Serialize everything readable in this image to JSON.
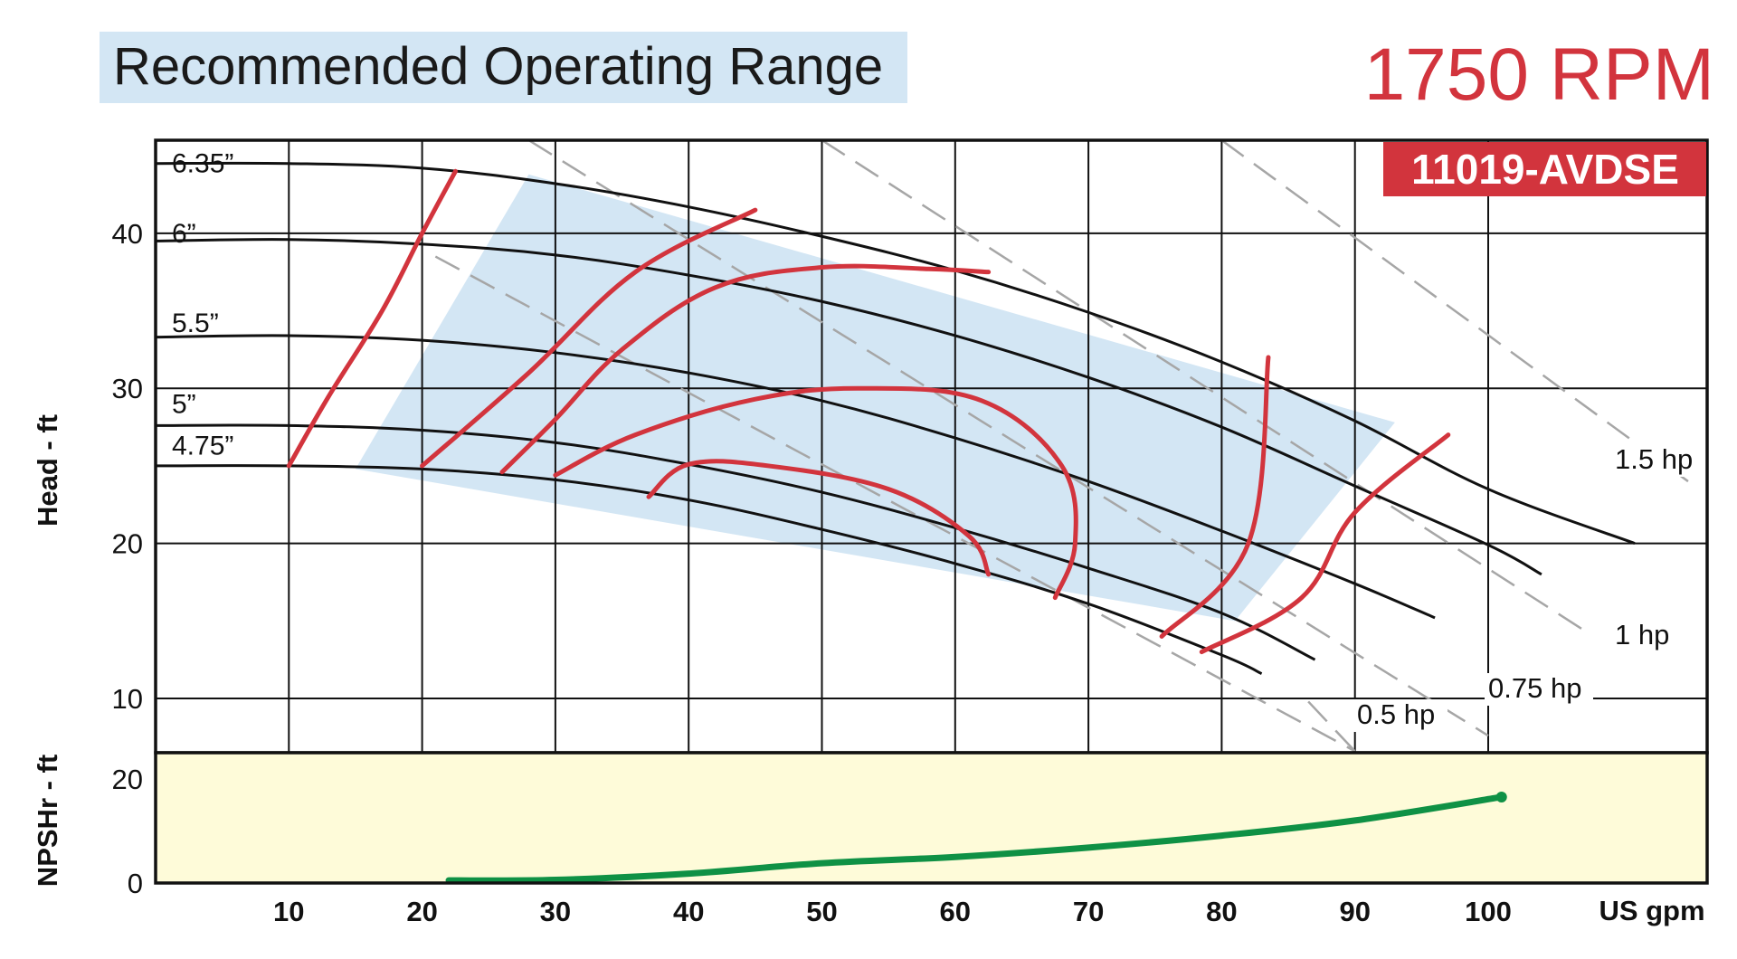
{
  "header": {
    "title": "Recommended Operating Range",
    "speed": "1750 RPM",
    "model": "11019-AVDSE"
  },
  "colors": {
    "title_background": "#d3e6f4",
    "operating_range": "#d3e6f4",
    "npsh_background": "#fefbd9",
    "accent_red": "#d2343d",
    "npsh_curve": "#0f9145",
    "power_lines": "#a6a6a6"
  },
  "chart_data": [
    {
      "type": "line",
      "name": "head",
      "xlabel": "US gpm",
      "ylabel": "Head - ft",
      "xlim": [
        0,
        110
      ],
      "ylim": [
        6.5,
        46
      ],
      "xticks": [
        "10",
        "20",
        "30",
        "40",
        "50",
        "60",
        "70",
        "80",
        "90",
        "100"
      ],
      "yticks": [
        "10",
        "20",
        "30",
        "40"
      ],
      "grid": true,
      "impeller_curves": [
        {
          "label": "6.35”",
          "x": [
            0,
            10,
            20,
            30,
            40,
            50,
            60,
            70,
            80,
            90,
            100,
            111
          ],
          "y": [
            44.5,
            44.5,
            44.2,
            43.2,
            41.7,
            39.8,
            37.6,
            34.9,
            31.7,
            27.9,
            23.5,
            20
          ]
        },
        {
          "label": "6”",
          "x": [
            0,
            10,
            20,
            30,
            40,
            50,
            60,
            70,
            80,
            90,
            100,
            104
          ],
          "y": [
            39.5,
            39.6,
            39.3,
            38.6,
            37.3,
            35.6,
            33.4,
            30.7,
            27.5,
            23.7,
            19.9,
            18
          ]
        },
        {
          "label": "5.5”",
          "x": [
            0,
            10,
            20,
            30,
            40,
            50,
            60,
            70,
            80,
            90,
            96
          ],
          "y": [
            33.3,
            33.4,
            33.1,
            32.3,
            31.0,
            29.2,
            26.8,
            24.0,
            20.8,
            17.4,
            15.2
          ]
        },
        {
          "label": "5”",
          "x": [
            0,
            10,
            20,
            30,
            40,
            50,
            60,
            70,
            80,
            87
          ],
          "y": [
            27.6,
            27.6,
            27.3,
            26.5,
            25.1,
            23.3,
            21.0,
            18.4,
            15.5,
            12.5
          ]
        },
        {
          "label": "4.75”",
          "x": [
            0,
            10,
            20,
            30,
            40,
            50,
            60,
            70,
            80,
            83
          ],
          "y": [
            25.0,
            25.0,
            24.8,
            24.1,
            22.8,
            20.9,
            18.7,
            16.1,
            12.8,
            11.6
          ]
        }
      ],
      "efficiency_curves": [
        {
          "x": [
            10,
            13,
            17,
            20,
            22.5
          ],
          "y": [
            25,
            29.5,
            35,
            40,
            44
          ]
        },
        {
          "x": [
            20,
            28,
            36,
            45
          ],
          "y": [
            25,
            31,
            37.5,
            41.5
          ]
        },
        {
          "x": [
            26,
            30,
            35,
            42,
            50,
            58,
            62.5
          ],
          "y": [
            24.6,
            28,
            32.5,
            36.5,
            37.8,
            37.7,
            37.5
          ]
        },
        {
          "x": [
            30,
            36,
            45,
            53,
            62,
            68,
            69,
            67.5
          ],
          "y": [
            24.4,
            27,
            29.3,
            30,
            29.2,
            25,
            20,
            16.5
          ]
        },
        {
          "x": [
            37,
            40,
            46,
            55,
            61,
            62.5
          ],
          "y": [
            23,
            25.1,
            25,
            23.5,
            20.5,
            18
          ]
        },
        {
          "x": [
            75.5,
            82,
            83.5
          ],
          "y": [
            14,
            20,
            32
          ]
        },
        {
          "x": [
            78.5,
            86,
            90,
            97
          ],
          "y": [
            13,
            16.5,
            22,
            27
          ]
        }
      ],
      "power_lines": [
        {
          "label": "0.5 hp",
          "x": [
            21,
            90
          ],
          "y": [
            38.5,
            6.6
          ]
        },
        {
          "label": "0.75 hp",
          "x": [
            28,
            100
          ],
          "y": [
            46,
            7.6
          ]
        },
        {
          "label": "1 hp",
          "x": [
            50,
            107
          ],
          "y": [
            46,
            14.5
          ]
        },
        {
          "label": "1.5 hp",
          "x": [
            80,
            115
          ],
          "y": [
            46,
            24
          ]
        }
      ],
      "operating_range": {
        "x": [
          15,
          28,
          93,
          81
        ],
        "y": [
          24.8,
          43.8,
          27.8,
          15.0
        ]
      }
    },
    {
      "type": "line",
      "name": "npshr",
      "xlabel": "US gpm",
      "ylabel": "NPSHr - ft",
      "xlim": [
        0,
        110
      ],
      "ylim": [
        0,
        25
      ],
      "yticks": [
        "0",
        "20"
      ],
      "series": [
        {
          "x": [
            22,
            30,
            40,
            50,
            60,
            70,
            80,
            90,
            101
          ],
          "y": [
            0.5,
            0.6,
            1.8,
            3.8,
            5.0,
            6.8,
            9.1,
            12.0,
            16.5
          ]
        }
      ]
    }
  ]
}
